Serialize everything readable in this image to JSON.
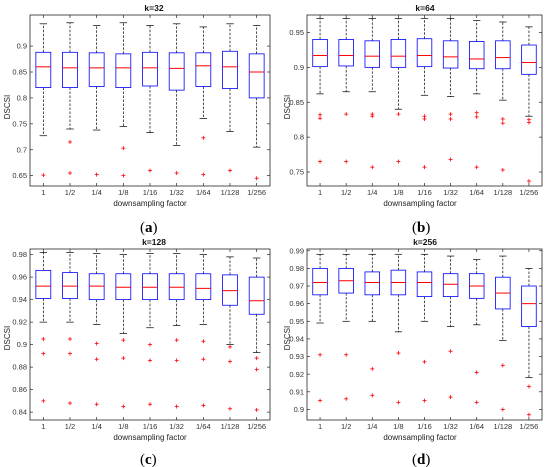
{
  "chart_data": [
    {
      "type": "boxplot",
      "title": "k=32",
      "caption": "a",
      "xlabel": "downsampling factor",
      "ylabel": "DSCSI",
      "categories": [
        "1",
        "1/2",
        "1/4",
        "1/8",
        "1/16",
        "1/32",
        "1/64",
        "1/128",
        "1/256"
      ],
      "ylim": [
        0.63,
        0.96
      ],
      "yticks": [
        "0.65",
        "0.7",
        "0.75",
        "0.8",
        "0.85",
        "0.9"
      ],
      "ytick_values": [
        0.65,
        0.7,
        0.75,
        0.8,
        0.85,
        0.9
      ],
      "boxes": [
        {
          "q1": 0.82,
          "median": 0.86,
          "q3": 0.888,
          "whisker_low": 0.727,
          "whisker_high": 0.943,
          "outliers": [
            0.651
          ]
        },
        {
          "q1": 0.82,
          "median": 0.858,
          "q3": 0.888,
          "whisker_low": 0.74,
          "whisker_high": 0.945,
          "outliers": [
            0.715,
            0.655
          ]
        },
        {
          "q1": 0.822,
          "median": 0.858,
          "q3": 0.887,
          "whisker_low": 0.738,
          "whisker_high": 0.94,
          "outliers": [
            0.652
          ]
        },
        {
          "q1": 0.82,
          "median": 0.858,
          "q3": 0.885,
          "whisker_low": 0.745,
          "whisker_high": 0.945,
          "outliers": [
            0.703,
            0.65
          ]
        },
        {
          "q1": 0.823,
          "median": 0.858,
          "q3": 0.888,
          "whisker_low": 0.733,
          "whisker_high": 0.94,
          "outliers": [
            0.66
          ]
        },
        {
          "q1": 0.815,
          "median": 0.857,
          "q3": 0.887,
          "whisker_low": 0.708,
          "whisker_high": 0.943,
          "outliers": [
            0.655
          ]
        },
        {
          "q1": 0.822,
          "median": 0.862,
          "q3": 0.887,
          "whisker_low": 0.76,
          "whisker_high": 0.937,
          "outliers": [
            0.723,
            0.652
          ]
        },
        {
          "q1": 0.818,
          "median": 0.86,
          "q3": 0.89,
          "whisker_low": 0.735,
          "whisker_high": 0.943,
          "outliers": [
            0.66
          ]
        },
        {
          "q1": 0.8,
          "median": 0.85,
          "q3": 0.885,
          "whisker_low": 0.705,
          "whisker_high": 0.94,
          "outliers": [
            0.645
          ]
        }
      ]
    },
    {
      "type": "boxplot",
      "title": "k=64",
      "caption": "b",
      "xlabel": "downsampling factor",
      "ylabel": "DSCSI",
      "categories": [
        "1",
        "1/2",
        "1/4",
        "1/8",
        "1/16",
        "1/32",
        "1/64",
        "1/128",
        "1/256"
      ],
      "ylim": [
        0.73,
        0.975
      ],
      "yticks": [
        "0.75",
        "0.8",
        "0.85",
        "0.9",
        "0.95"
      ],
      "ytick_values": [
        0.75,
        0.8,
        0.85,
        0.9,
        0.95
      ],
      "boxes": [
        {
          "q1": 0.901,
          "median": 0.917,
          "q3": 0.94,
          "whisker_low": 0.862,
          "whisker_high": 0.97,
          "outliers": [
            0.832,
            0.827,
            0.765
          ]
        },
        {
          "q1": 0.902,
          "median": 0.917,
          "q3": 0.94,
          "whisker_low": 0.865,
          "whisker_high": 0.97,
          "outliers": [
            0.833,
            0.765
          ]
        },
        {
          "q1": 0.9,
          "median": 0.916,
          "q3": 0.938,
          "whisker_low": 0.865,
          "whisker_high": 0.97,
          "outliers": [
            0.833,
            0.83,
            0.757
          ]
        },
        {
          "q1": 0.9,
          "median": 0.916,
          "q3": 0.94,
          "whisker_low": 0.84,
          "whisker_high": 0.97,
          "outliers": [
            0.833,
            0.765
          ]
        },
        {
          "q1": 0.901,
          "median": 0.917,
          "q3": 0.941,
          "whisker_low": 0.86,
          "whisker_high": 0.97,
          "outliers": [
            0.83,
            0.826,
            0.757
          ]
        },
        {
          "q1": 0.899,
          "median": 0.915,
          "q3": 0.938,
          "whisker_low": 0.858,
          "whisker_high": 0.97,
          "outliers": [
            0.833,
            0.826,
            0.768
          ]
        },
        {
          "q1": 0.898,
          "median": 0.912,
          "q3": 0.937,
          "whisker_low": 0.862,
          "whisker_high": 0.967,
          "outliers": [
            0.835,
            0.829,
            0.757
          ]
        },
        {
          "q1": 0.898,
          "median": 0.914,
          "q3": 0.938,
          "whisker_low": 0.853,
          "whisker_high": 0.965,
          "outliers": [
            0.826,
            0.82,
            0.753
          ]
        },
        {
          "q1": 0.89,
          "median": 0.907,
          "q3": 0.932,
          "whisker_low": 0.83,
          "whisker_high": 0.958,
          "outliers": [
            0.825,
            0.821,
            0.737
          ]
        }
      ]
    },
    {
      "type": "boxplot",
      "title": "k=128",
      "caption": "c",
      "xlabel": "downsampling factor",
      "ylabel": "DSCSI",
      "categories": [
        "1",
        "1/2",
        "1/4",
        "1/8",
        "1/16",
        "1/32",
        "1/64",
        "1/128",
        "1/256"
      ],
      "ylim": [
        0.833,
        0.985
      ],
      "yticks": [
        "0.84",
        "0.86",
        "0.88",
        "0.9",
        "0.92",
        "0.94",
        "0.96",
        "0.98"
      ],
      "ytick_values": [
        0.84,
        0.86,
        0.88,
        0.9,
        0.92,
        0.94,
        0.96,
        0.98
      ],
      "boxes": [
        {
          "q1": 0.941,
          "median": 0.952,
          "q3": 0.966,
          "whisker_low": 0.92,
          "whisker_high": 0.982,
          "outliers": [
            0.905,
            0.892,
            0.85
          ]
        },
        {
          "q1": 0.941,
          "median": 0.952,
          "q3": 0.964,
          "whisker_low": 0.92,
          "whisker_high": 0.982,
          "outliers": [
            0.905,
            0.892,
            0.848
          ]
        },
        {
          "q1": 0.94,
          "median": 0.952,
          "q3": 0.963,
          "whisker_low": 0.918,
          "whisker_high": 0.981,
          "outliers": [
            0.901,
            0.887,
            0.847
          ]
        },
        {
          "q1": 0.94,
          "median": 0.951,
          "q3": 0.963,
          "whisker_low": 0.91,
          "whisker_high": 0.98,
          "outliers": [
            0.904,
            0.888,
            0.845
          ]
        },
        {
          "q1": 0.94,
          "median": 0.951,
          "q3": 0.963,
          "whisker_low": 0.915,
          "whisker_high": 0.981,
          "outliers": [
            0.9,
            0.886,
            0.847
          ]
        },
        {
          "q1": 0.94,
          "median": 0.951,
          "q3": 0.963,
          "whisker_low": 0.917,
          "whisker_high": 0.981,
          "outliers": [
            0.904,
            0.886,
            0.845
          ]
        },
        {
          "q1": 0.94,
          "median": 0.95,
          "q3": 0.963,
          "whisker_low": 0.918,
          "whisker_high": 0.98,
          "outliers": [
            0.903,
            0.887,
            0.846
          ]
        },
        {
          "q1": 0.935,
          "median": 0.948,
          "q3": 0.962,
          "whisker_low": 0.9,
          "whisker_high": 0.978,
          "outliers": [
            0.898,
            0.885,
            0.843
          ]
        },
        {
          "q1": 0.927,
          "median": 0.939,
          "q3": 0.96,
          "whisker_low": 0.893,
          "whisker_high": 0.977,
          "outliers": [
            0.888,
            0.878,
            0.842
          ]
        }
      ]
    },
    {
      "type": "boxplot",
      "title": "k=256",
      "caption": "d",
      "xlabel": "downsampling factor",
      "ylabel": "DSCSI",
      "categories": [
        "1",
        "1/2",
        "1/4",
        "1/8",
        "1/16",
        "1/32",
        "1/64",
        "1/128",
        "1/256"
      ],
      "ylim": [
        0.894,
        0.991
      ],
      "yticks": [
        "0.9",
        "0.91",
        "0.92",
        "0.93",
        "0.94",
        "0.95",
        "0.96",
        "0.97",
        "0.98",
        "0.99"
      ],
      "ytick_values": [
        0.9,
        0.91,
        0.92,
        0.93,
        0.94,
        0.95,
        0.96,
        0.97,
        0.98,
        0.99
      ],
      "boxes": [
        {
          "q1": 0.965,
          "median": 0.972,
          "q3": 0.98,
          "whisker_low": 0.949,
          "whisker_high": 0.988,
          "outliers": [
            0.931,
            0.905
          ]
        },
        {
          "q1": 0.966,
          "median": 0.973,
          "q3": 0.98,
          "whisker_low": 0.95,
          "whisker_high": 0.988,
          "outliers": [
            0.931,
            0.906
          ]
        },
        {
          "q1": 0.965,
          "median": 0.972,
          "q3": 0.978,
          "whisker_low": 0.95,
          "whisker_high": 0.988,
          "outliers": [
            0.923,
            0.908
          ]
        },
        {
          "q1": 0.965,
          "median": 0.972,
          "q3": 0.979,
          "whisker_low": 0.944,
          "whisker_high": 0.988,
          "outliers": [
            0.932,
            0.904
          ]
        },
        {
          "q1": 0.964,
          "median": 0.972,
          "q3": 0.978,
          "whisker_low": 0.95,
          "whisker_high": 0.988,
          "outliers": [
            0.927,
            0.905
          ]
        },
        {
          "q1": 0.964,
          "median": 0.971,
          "q3": 0.977,
          "whisker_low": 0.947,
          "whisker_high": 0.987,
          "outliers": [
            0.933,
            0.907
          ]
        },
        {
          "q1": 0.963,
          "median": 0.97,
          "q3": 0.977,
          "whisker_low": 0.948,
          "whisker_high": 0.985,
          "outliers": [
            0.921,
            0.904
          ]
        },
        {
          "q1": 0.957,
          "median": 0.966,
          "q3": 0.975,
          "whisker_low": 0.939,
          "whisker_high": 0.987,
          "outliers": [
            0.925,
            0.9
          ]
        },
        {
          "q1": 0.947,
          "median": 0.96,
          "q3": 0.97,
          "whisker_low": 0.918,
          "whisker_high": 0.98,
          "outliers": [
            0.913,
            0.897
          ]
        }
      ]
    }
  ],
  "colors": {
    "box": "#0000ff",
    "median": "#ff0000",
    "whisker": "#000000",
    "outlier": "#ff0000",
    "axes": "#262626"
  }
}
